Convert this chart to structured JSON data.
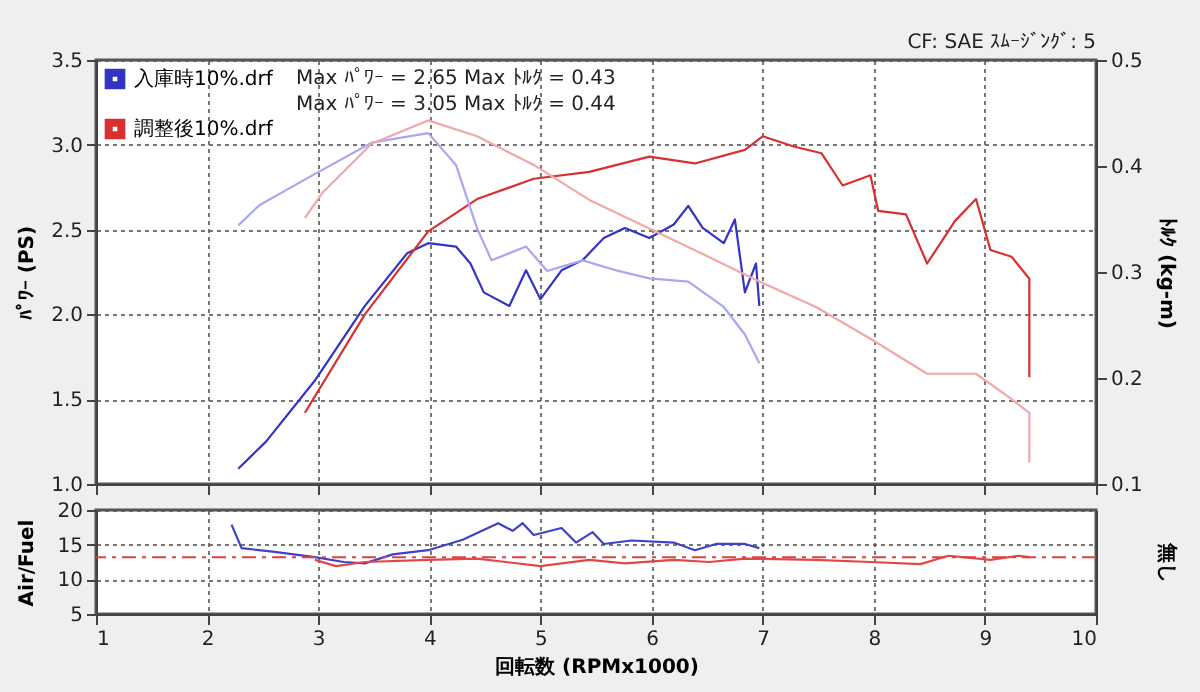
{
  "chart_data": [
    {
      "type": "line",
      "ylabel": "ﾊﾟﾜｰ (PS)",
      "y2label": "ﾄﾙｸ (kg-m)",
      "annotations": [
        "Max ﾊﾟﾜｰ = 2.65   Max ﾄﾙｸ = 0.43",
        "Max ﾊﾟﾜｰ = 3.05   Max ﾄﾙｸ = 0.44",
        "CF: SAE   ｽﾑｰｼﾞﾝｸﾞ: 5"
      ],
      "xlim": [
        1,
        10
      ],
      "xticks": [
        1,
        2,
        3,
        4,
        5,
        6,
        7,
        8,
        9,
        10
      ],
      "ylim": [
        1.0,
        3.5
      ],
      "yticks": [
        {
          "value": 1.0,
          "label": "1.0"
        },
        1.5,
        {
          "value": 2.0,
          "label": "2.0"
        },
        2.5,
        {
          "value": 3.0,
          "label": "3.0"
        },
        3.5
      ],
      "y2lim": [
        0.1,
        0.5
      ],
      "y2ticks": [
        0.1,
        0.2,
        0.3,
        0.4,
        0.5
      ],
      "tick_labels": "y",
      "grid": true,
      "legend": "top left",
      "series": [
        {
          "name": "入庫時10%.drf",
          "color": "#3434c4",
          "x": [
            2.28,
            2.53,
            2.97,
            3.42,
            3.8,
            3.99,
            4.24,
            4.37,
            4.49,
            4.72,
            4.87,
            5.0,
            5.19,
            5.38,
            5.57,
            5.76,
            5.98,
            6.2,
            6.33,
            6.46,
            6.65,
            6.75,
            6.84,
            6.94,
            6.97
          ],
          "values": [
            1.09,
            1.25,
            1.61,
            2.05,
            2.36,
            2.42,
            2.4,
            2.3,
            2.13,
            2.05,
            2.26,
            2.09,
            2.26,
            2.32,
            2.45,
            2.51,
            2.45,
            2.53,
            2.64,
            2.51,
            2.42,
            2.56,
            2.13,
            2.3,
            2.05
          ]
        },
        {
          "name": "調整後10%.drf",
          "color": "#d83030",
          "x": [
            2.88,
            3.42,
            3.99,
            4.43,
            4.94,
            5.44,
            5.98,
            6.39,
            6.84,
            7.0,
            7.28,
            7.53,
            7.72,
            7.97,
            8.04,
            8.29,
            8.48,
            8.73,
            8.92,
            9.05,
            9.24,
            9.4,
            9.4
          ],
          "values": [
            1.42,
            2.0,
            2.49,
            2.68,
            2.8,
            2.84,
            2.93,
            2.89,
            2.97,
            3.05,
            2.99,
            2.95,
            2.76,
            2.82,
            2.61,
            2.59,
            2.3,
            2.55,
            2.68,
            2.38,
            2.34,
            2.21,
            1.63
          ]
        },
        {
          "axis": "y2",
          "color": "#a8a8f0",
          "x": [
            2.28,
            2.47,
            2.91,
            3.48,
            3.99,
            4.24,
            4.43,
            4.56,
            4.87,
            5.06,
            5.38,
            5.7,
            5.98,
            6.33,
            6.65,
            6.84,
            6.97
          ],
          "values": [
            0.344,
            0.363,
            0.389,
            0.422,
            0.431,
            0.401,
            0.341,
            0.311,
            0.324,
            0.301,
            0.311,
            0.301,
            0.294,
            0.291,
            0.267,
            0.241,
            0.214
          ]
        },
        {
          "axis": "y2",
          "color": "#f0a8a8",
          "x": [
            2.88,
            3.04,
            3.48,
            3.99,
            4.43,
            4.94,
            5.44,
            5.98,
            6.52,
            6.97,
            7.48,
            7.97,
            8.48,
            8.92,
            9.24,
            9.4,
            9.4
          ],
          "values": [
            0.351,
            0.375,
            0.421,
            0.443,
            0.428,
            0.401,
            0.368,
            0.341,
            0.314,
            0.291,
            0.267,
            0.237,
            0.204,
            0.204,
            0.18,
            0.167,
            0.12
          ]
        }
      ]
    },
    {
      "type": "line",
      "xlabel": "回転数 (RPMx1000)",
      "ylabel": "Air/Fuel",
      "y2label": "無し",
      "xlim": [
        1,
        10
      ],
      "xticks": [
        1,
        2,
        3,
        4,
        5,
        6,
        7,
        8,
        9,
        10
      ],
      "ylim": [
        5,
        20
      ],
      "yticks": [
        5,
        10,
        15,
        20
      ],
      "grid": true,
      "ref_lines": [
        {
          "axis": "y",
          "value": 13.2,
          "color": "#e04040",
          "line_style": "dashed"
        }
      ],
      "series": [
        {
          "color": "#4040c8",
          "x": [
            2.22,
            2.31,
            2.59,
            2.97,
            3.23,
            3.42,
            3.67,
            3.99,
            4.3,
            4.62,
            4.75,
            4.84,
            4.94,
            5.19,
            5.32,
            5.47,
            5.57,
            5.82,
            6.2,
            6.39,
            6.58,
            6.84,
            6.97
          ],
          "values": [
            17.9,
            14.5,
            14.0,
            13.2,
            12.5,
            12.3,
            13.6,
            14.2,
            15.7,
            18.1,
            17.0,
            18.1,
            16.4,
            17.4,
            15.3,
            16.8,
            15.1,
            15.6,
            15.3,
            14.2,
            15.1,
            15.1,
            14.5
          ]
        },
        {
          "color": "#e04848",
          "x": [
            2.97,
            3.16,
            3.42,
            3.99,
            4.43,
            5.0,
            5.44,
            5.76,
            6.2,
            6.52,
            6.84,
            7.47,
            7.97,
            8.42,
            8.67,
            9.05,
            9.3,
            9.4
          ],
          "values": [
            12.8,
            11.9,
            12.5,
            12.8,
            13.0,
            11.9,
            12.8,
            12.3,
            12.8,
            12.5,
            13.0,
            12.8,
            12.5,
            12.2,
            13.4,
            12.8,
            13.4,
            13.2
          ]
        }
      ]
    }
  ]
}
